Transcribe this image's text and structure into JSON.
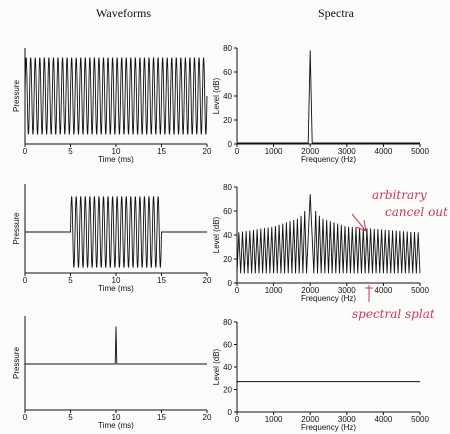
{
  "headings": {
    "waveforms": "Waveforms",
    "spectra": "Spectra"
  },
  "annotations": {
    "note1_line1": "arbitrary",
    "note1_line2": "cancel out",
    "note2": "spectral splat"
  },
  "colors": {
    "ink": "#111111",
    "annotation": "#c63a5e"
  },
  "chart_data": [
    {
      "type": "line",
      "id": "wave1",
      "xlabel": "Time (ms)",
      "ylabel": "Pressure",
      "xlim": [
        0,
        20
      ],
      "xticks": [
        0,
        5,
        10,
        15,
        20
      ],
      "signal": {
        "kind": "sinusoid",
        "frequency_hz": 2000,
        "start_ms": 0,
        "end_ms": 20
      }
    },
    {
      "type": "line",
      "id": "spec1",
      "xlabel": "Frequency (Hz)",
      "ylabel": "Level (dB)",
      "xlim": [
        0,
        5000
      ],
      "ylim": [
        0,
        80
      ],
      "xticks": [
        0,
        1000,
        2000,
        3000,
        4000,
        5000
      ],
      "yticks": [
        0,
        20,
        40,
        60,
        80
      ],
      "peaks": [
        {
          "x": 2000,
          "y": 78
        }
      ]
    },
    {
      "type": "line",
      "id": "wave2",
      "xlabel": "Time (ms)",
      "ylabel": "Pressure",
      "xlim": [
        0,
        20
      ],
      "xticks": [
        0,
        5,
        10,
        15,
        20
      ],
      "signal": {
        "kind": "gated sinusoid",
        "frequency_hz": 2000,
        "start_ms": 5,
        "end_ms": 15
      }
    },
    {
      "type": "line",
      "id": "spec2",
      "xlabel": "Frequency (Hz)",
      "ylabel": "Level (dB)",
      "xlim": [
        0,
        5000
      ],
      "ylim": [
        0,
        80
      ],
      "xticks": [
        0,
        1000,
        2000,
        3000,
        4000,
        5000
      ],
      "yticks": [
        0,
        20,
        40,
        60,
        80
      ],
      "main_lobe": {
        "x": 2000,
        "y": 74
      },
      "sidelobe_spacing_hz": 100,
      "sidelobe_envelope": [
        {
          "x": 0,
          "y": 42
        },
        {
          "x": 1000,
          "y": 47
        },
        {
          "x": 1700,
          "y": 54
        },
        {
          "x": 1900,
          "y": 62
        },
        {
          "x": 2100,
          "y": 62
        },
        {
          "x": 2300,
          "y": 54
        },
        {
          "x": 3000,
          "y": 47
        },
        {
          "x": 5000,
          "y": 42
        }
      ],
      "sidelobe_floor": 8
    },
    {
      "type": "line",
      "id": "wave3",
      "xlabel": "Time (ms)",
      "ylabel": "Pressure",
      "xlim": [
        0,
        20
      ],
      "xticks": [
        0,
        5,
        10,
        15,
        20
      ],
      "signal": {
        "kind": "impulse",
        "time_ms": 10
      }
    },
    {
      "type": "line",
      "id": "spec3",
      "xlabel": "Frequency (Hz)",
      "ylabel": "Level (dB)",
      "xlim": [
        0,
        5000
      ],
      "ylim": [
        0,
        80
      ],
      "xticks": [
        0,
        1000,
        2000,
        3000,
        4000,
        5000
      ],
      "yticks": [
        0,
        20,
        40,
        60,
        80
      ],
      "flat_level": 27
    }
  ]
}
